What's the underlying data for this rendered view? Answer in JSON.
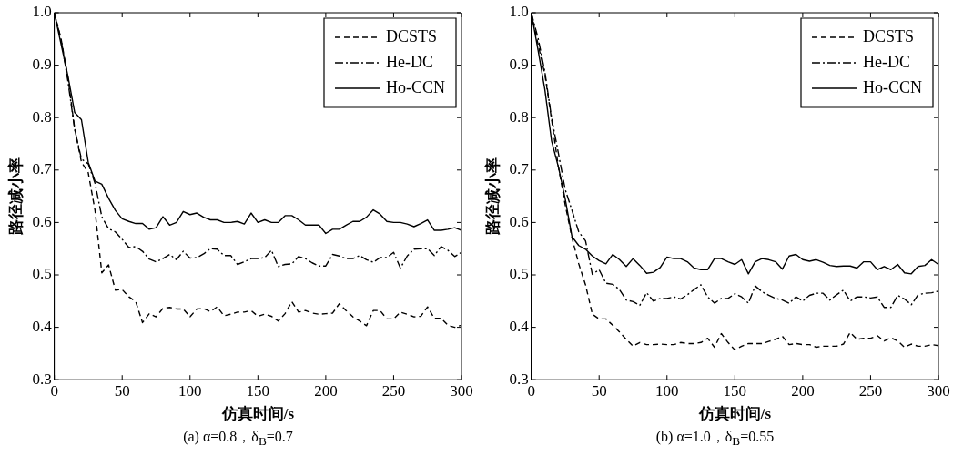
{
  "chart_data": [
    {
      "type": "line",
      "xlabel": "仿真时间/s",
      "ylabel": "路径减小率",
      "annotations": [
        "(a) α=0.8，δ$_{B}$=0.7"
      ],
      "legend": "top right",
      "grid": false,
      "x": [
        0,
        5,
        10,
        15,
        20,
        25,
        30,
        35,
        40,
        45,
        50,
        55,
        60,
        65,
        70,
        75,
        80,
        85,
        90,
        95,
        100,
        105,
        110,
        115,
        120,
        125,
        130,
        135,
        140,
        145,
        150,
        155,
        160,
        165,
        170,
        175,
        180,
        185,
        190,
        195,
        200,
        205,
        210,
        215,
        220,
        225,
        230,
        235,
        240,
        245,
        250,
        255,
        260,
        265,
        270,
        275,
        280,
        285,
        290,
        295,
        300
      ],
      "xlim": [
        0,
        300
      ],
      "xticks": [
        0,
        50,
        100,
        150,
        200,
        250,
        300
      ],
      "ylim": [
        0.3,
        1.0
      ],
      "yticks": [
        0.3,
        0.4,
        0.5,
        0.6,
        0.7,
        0.8,
        0.9,
        {
          "value": 1.0,
          "label": "1.0"
        }
      ],
      "series": [
        {
          "name": "DCSTS",
          "color": "#000000",
          "line_style": "dashed",
          "values": [
            1.0,
            0.95,
            0.877,
            0.779,
            0.715,
            0.695,
            0.623,
            0.504,
            0.519,
            0.471,
            0.472,
            0.458,
            0.449,
            0.409,
            0.426,
            0.42,
            0.436,
            0.438,
            0.435,
            0.435,
            0.42,
            0.435,
            0.436,
            0.43,
            0.439,
            0.422,
            0.425,
            0.429,
            0.429,
            0.432,
            0.421,
            0.425,
            0.421,
            0.412,
            0.426,
            0.449,
            0.429,
            0.432,
            0.427,
            0.425,
            0.426,
            0.427,
            0.445,
            0.432,
            0.42,
            0.412,
            0.403,
            0.432,
            0.432,
            0.416,
            0.416,
            0.429,
            0.425,
            0.42,
            0.421,
            0.439,
            0.417,
            0.417,
            0.404,
            0.4,
            0.404
          ]
        },
        {
          "name": "He-DC",
          "color": "#000000",
          "line_style": "dashdot",
          "values": [
            1.0,
            0.949,
            0.87,
            0.778,
            0.721,
            0.712,
            0.675,
            0.611,
            0.588,
            0.582,
            0.568,
            0.552,
            0.554,
            0.545,
            0.53,
            0.525,
            0.531,
            0.539,
            0.529,
            0.545,
            0.532,
            0.533,
            0.54,
            0.55,
            0.549,
            0.537,
            0.537,
            0.52,
            0.525,
            0.531,
            0.531,
            0.533,
            0.547,
            0.516,
            0.52,
            0.521,
            0.535,
            0.531,
            0.523,
            0.517,
            0.517,
            0.539,
            0.536,
            0.531,
            0.531,
            0.537,
            0.529,
            0.524,
            0.533,
            0.533,
            0.543,
            0.513,
            0.536,
            0.549,
            0.55,
            0.55,
            0.537,
            0.554,
            0.547,
            0.535,
            0.543
          ]
        },
        {
          "name": "Ho-CCN",
          "color": "#000000",
          "line_style": "solid",
          "values": [
            1.0,
            0.94,
            0.88,
            0.81,
            0.796,
            0.715,
            0.679,
            0.673,
            0.646,
            0.623,
            0.607,
            0.602,
            0.598,
            0.598,
            0.587,
            0.59,
            0.611,
            0.595,
            0.6,
            0.621,
            0.615,
            0.618,
            0.61,
            0.605,
            0.605,
            0.6,
            0.6,
            0.602,
            0.597,
            0.618,
            0.6,
            0.605,
            0.6,
            0.6,
            0.613,
            0.613,
            0.605,
            0.595,
            0.595,
            0.595,
            0.579,
            0.587,
            0.587,
            0.595,
            0.602,
            0.602,
            0.61,
            0.624,
            0.616,
            0.602,
            0.6,
            0.6,
            0.597,
            0.592,
            0.598,
            0.605,
            0.585,
            0.585,
            0.587,
            0.59,
            0.585
          ]
        }
      ]
    },
    {
      "type": "line",
      "xlabel": "仿真时间/s",
      "ylabel": "路径减小率",
      "annotations": [
        "(b) α=1.0，δ$_{B}$=0.55"
      ],
      "legend": "top right",
      "grid": false,
      "x": [
        0,
        5,
        10,
        15,
        20,
        25,
        30,
        35,
        40,
        45,
        50,
        55,
        60,
        65,
        70,
        75,
        80,
        85,
        90,
        95,
        100,
        105,
        110,
        115,
        120,
        125,
        130,
        135,
        140,
        145,
        150,
        155,
        160,
        165,
        170,
        175,
        180,
        185,
        190,
        195,
        200,
        205,
        210,
        215,
        220,
        225,
        230,
        235,
        240,
        245,
        250,
        255,
        260,
        265,
        270,
        275,
        280,
        285,
        290,
        295,
        300
      ],
      "xlim": [
        0,
        300
      ],
      "xticks": [
        0,
        50,
        100,
        150,
        200,
        250,
        300
      ],
      "ylim": [
        0.3,
        1.0
      ],
      "yticks": [
        0.3,
        0.4,
        0.5,
        0.6,
        0.7,
        0.8,
        0.9,
        {
          "value": 1.0,
          "label": "1.0"
        }
      ],
      "series": [
        {
          "name": "DCSTS",
          "color": "#000000",
          "line_style": "dashed",
          "values": [
            1.0,
            0.94,
            0.883,
            0.796,
            0.706,
            0.634,
            0.571,
            0.521,
            0.481,
            0.425,
            0.416,
            0.416,
            0.404,
            0.391,
            0.377,
            0.364,
            0.371,
            0.367,
            0.367,
            0.368,
            0.367,
            0.367,
            0.371,
            0.369,
            0.369,
            0.371,
            0.379,
            0.362,
            0.388,
            0.371,
            0.357,
            0.364,
            0.369,
            0.369,
            0.369,
            0.373,
            0.377,
            0.383,
            0.367,
            0.369,
            0.367,
            0.367,
            0.362,
            0.364,
            0.364,
            0.364,
            0.368,
            0.39,
            0.377,
            0.379,
            0.379,
            0.384,
            0.374,
            0.38,
            0.374,
            0.362,
            0.368,
            0.364,
            0.364,
            0.367,
            0.365
          ]
        },
        {
          "name": "He-DC",
          "color": "#000000",
          "line_style": "dashdot",
          "values": [
            1.0,
            0.952,
            0.888,
            0.799,
            0.732,
            0.663,
            0.623,
            0.582,
            0.565,
            0.501,
            0.51,
            0.484,
            0.482,
            0.472,
            0.452,
            0.449,
            0.442,
            0.466,
            0.45,
            0.455,
            0.455,
            0.458,
            0.454,
            0.462,
            0.472,
            0.481,
            0.458,
            0.446,
            0.455,
            0.455,
            0.464,
            0.458,
            0.446,
            0.479,
            0.468,
            0.461,
            0.455,
            0.452,
            0.446,
            0.458,
            0.45,
            0.461,
            0.465,
            0.465,
            0.452,
            0.462,
            0.471,
            0.45,
            0.458,
            0.458,
            0.456,
            0.458,
            0.438,
            0.438,
            0.461,
            0.454,
            0.443,
            0.462,
            0.465,
            0.466,
            0.469
          ]
        },
        {
          "name": "Ho-CCN",
          "color": "#000000",
          "line_style": "solid",
          "values": [
            1.0,
            0.929,
            0.854,
            0.755,
            0.706,
            0.645,
            0.573,
            0.556,
            0.549,
            0.536,
            0.527,
            0.521,
            0.539,
            0.529,
            0.516,
            0.531,
            0.518,
            0.503,
            0.505,
            0.514,
            0.534,
            0.531,
            0.531,
            0.525,
            0.513,
            0.51,
            0.51,
            0.531,
            0.531,
            0.525,
            0.52,
            0.529,
            0.502,
            0.525,
            0.531,
            0.529,
            0.525,
            0.511,
            0.536,
            0.539,
            0.529,
            0.526,
            0.529,
            0.524,
            0.518,
            0.516,
            0.517,
            0.517,
            0.513,
            0.525,
            0.525,
            0.51,
            0.516,
            0.51,
            0.52,
            0.504,
            0.502,
            0.516,
            0.518,
            0.529,
            0.52
          ]
        }
      ]
    }
  ]
}
